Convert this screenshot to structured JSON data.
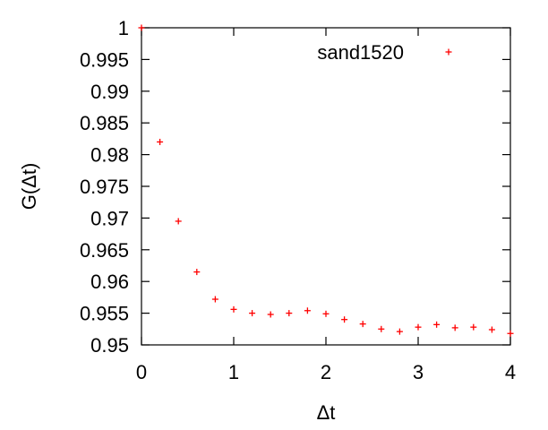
{
  "chart_data": {
    "type": "scatter",
    "xlabel": "Δt",
    "ylabel": "G(Δt)",
    "xlim": [
      0,
      4
    ],
    "ylim": [
      0.95,
      1
    ],
    "xticks": [
      "0",
      "1",
      "2",
      "3",
      "4"
    ],
    "yticks": [
      "0.95",
      "0.955",
      "0.96",
      "0.965",
      "0.97",
      "0.975",
      "0.98",
      "0.985",
      "0.99",
      "0.995",
      "1"
    ],
    "grid": false,
    "legend_position": "top-right",
    "series": [
      {
        "name": "sand1520",
        "marker": "plus",
        "color": "#ff0000",
        "points": [
          [
            0.0,
            1.0
          ],
          [
            0.2,
            0.982
          ],
          [
            0.4,
            0.9695
          ],
          [
            0.6,
            0.9615
          ],
          [
            0.8,
            0.9572
          ],
          [
            1.0,
            0.9556
          ],
          [
            1.2,
            0.955
          ],
          [
            1.4,
            0.9548
          ],
          [
            1.6,
            0.955
          ],
          [
            1.8,
            0.9554
          ],
          [
            2.0,
            0.9549
          ],
          [
            2.2,
            0.954
          ],
          [
            2.4,
            0.9533
          ],
          [
            2.6,
            0.9525
          ],
          [
            2.8,
            0.9521
          ],
          [
            3.0,
            0.9528
          ],
          [
            3.2,
            0.9532
          ],
          [
            3.4,
            0.9527
          ],
          [
            3.6,
            0.9528
          ],
          [
            3.8,
            0.9524
          ],
          [
            4.0,
            0.9518
          ]
        ]
      }
    ]
  }
}
